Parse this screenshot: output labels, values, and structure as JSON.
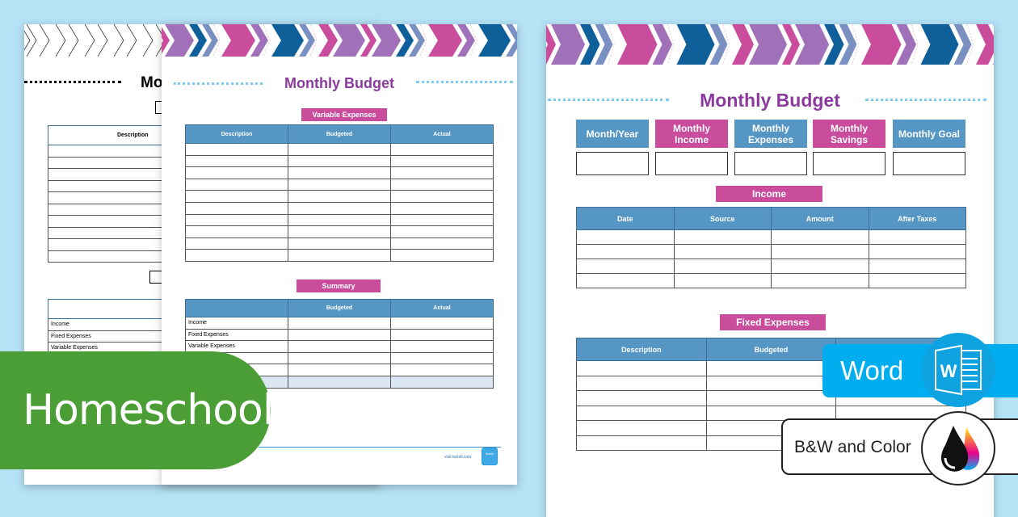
{
  "colors": {
    "background": "#b6e2f6",
    "pink": "#c94c9d",
    "purple": "#8b3a9e",
    "blue_header": "#5696c4",
    "green": "#4a9e35",
    "word_blue": "#00aeef"
  },
  "back_page": {
    "title": "Mo",
    "table1_headers": [
      "Description",
      ""
    ],
    "table2_rows": [
      "Income",
      "Fixed Expenses",
      "Variable Expenses"
    ]
  },
  "middle_page": {
    "title": "Monthly Budget",
    "variable_label": "Variable Expenses",
    "variable_headers": [
      "Description",
      "Budgeted",
      "Actual"
    ],
    "summary_label": "Summary",
    "summary_headers": [
      "",
      "Budgeted",
      "Actual"
    ],
    "summary_rows": [
      "Income",
      "Fixed Expenses",
      "Variable Expenses",
      "",
      ""
    ],
    "footer_link": "visit twinkl.com",
    "logo": "twinkl"
  },
  "right_page": {
    "title": "Monthly Budget",
    "boxes": [
      {
        "label": "Month/Year",
        "color": "#5696c4"
      },
      {
        "label": "Monthly Income",
        "color": "#c94c9d"
      },
      {
        "label": "Monthly Expenses",
        "color": "#5696c4"
      },
      {
        "label": "Monthly Savings",
        "color": "#c94c9d"
      },
      {
        "label": "Monthly Goal",
        "color": "#5696c4"
      }
    ],
    "income_label": "Income",
    "income_headers": [
      "Date",
      "Source",
      "Amount",
      "After Taxes"
    ],
    "fixed_label": "Fixed Expenses",
    "fixed_headers": [
      "Description",
      "Budgeted",
      ""
    ]
  },
  "badges": {
    "homeschool": "Homeschool",
    "word": "Word",
    "word_icon": "word-icon",
    "bw": "B&W and Color",
    "bw_icon": "ink-drops-icon"
  }
}
